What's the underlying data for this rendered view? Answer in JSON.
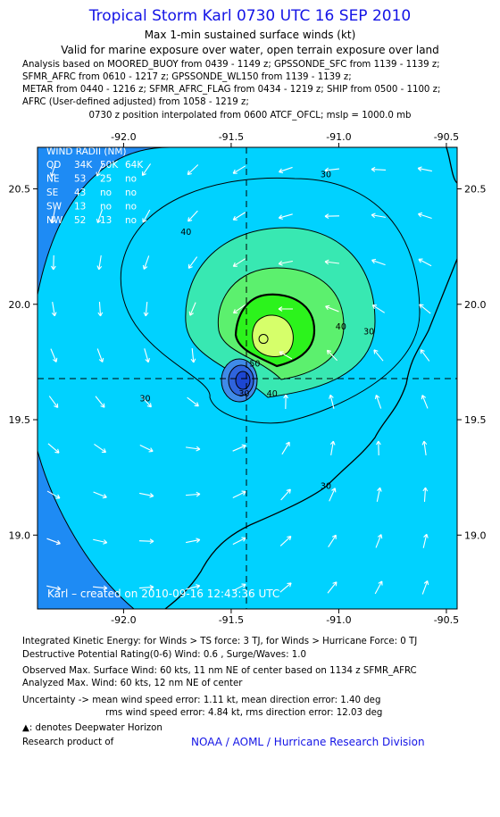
{
  "header": {
    "title": "Tropical Storm Karl 0730 UTC 16 SEP 2010",
    "subtitle1": "Max 1-min sustained surface winds (kt)",
    "subtitle2": "Valid for marine exposure over water, open terrain exposure over land",
    "analysis_lines": [
      "Analysis based on MOORED_BUOY from 0439 - 1149 z; GPSSONDE_SFC from 1139 - 1139 z;",
      "SFMR_AFRC from 0610 - 1217 z; GPSSONDE_WL150 from 1139 - 1139 z;",
      "METAR from 0440 - 1216 z; SFMR_AFRC_FLAG from 0434 - 1219 z; SHIP from 0500 - 1100 z;",
      "AFRC (User-defined adjusted) from 1058 - 1219 z;"
    ],
    "position_line": "0730 z position interpolated from 0600 ATCF_OFCL; mslp = 1000.0 mb"
  },
  "chart_data": {
    "type": "contour map",
    "x_ticks": [
      "-92.0",
      "-91.5",
      "-91.0",
      "-90.5"
    ],
    "y_ticks": [
      "20.5",
      "20.0",
      "19.5",
      "19.0"
    ],
    "xlim": [
      -92.4,
      -90.45
    ],
    "ylim": [
      18.68,
      20.68
    ],
    "center": {
      "lon": -91.45,
      "lat": 19.68
    },
    "max_wind_location": {
      "lon": -91.35,
      "lat": 19.85
    },
    "contour_labels": [
      {
        "text": "30",
        "lon": -91.06,
        "lat": 20.55
      },
      {
        "text": "40",
        "lon": -91.71,
        "lat": 20.3
      },
      {
        "text": "40",
        "lon": -90.99,
        "lat": 19.89
      },
      {
        "text": "40",
        "lon": -91.31,
        "lat": 19.6
      },
      {
        "text": "50",
        "lon": -91.39,
        "lat": 19.73
      },
      {
        "text": "30",
        "lon": -91.44,
        "lat": 19.6
      },
      {
        "text": "30",
        "lon": -91.9,
        "lat": 19.58
      },
      {
        "text": "30",
        "lon": -91.06,
        "lat": 19.2
      },
      {
        "text": "30",
        "lon": -90.86,
        "lat": 19.87
      }
    ],
    "wind_radii": {
      "title": "WIND RADII (NM)",
      "columns": [
        "QD",
        "34K",
        "50K",
        "64K"
      ],
      "rows": [
        [
          "NE",
          "53",
          "25",
          "no"
        ],
        [
          "SE",
          "43",
          "no",
          "no"
        ],
        [
          "SW",
          "13",
          "no",
          "no"
        ],
        [
          "NW",
          "52",
          "13",
          "no"
        ]
      ]
    },
    "credit": "Karl – created on 2010-09-16 12:43:36 UTC",
    "colors": {
      "background": "#1e8bf4",
      "level_30": "#00d2ff",
      "level_40": "#38e8b2",
      "level_45": "#5cf06e",
      "level_50": "#2cf31c",
      "level_55": "#d6ff6a",
      "eye": "#1c46d2"
    }
  },
  "footer": {
    "ike": "Integrated Kinetic Energy:  for Winds > TS force: 3 TJ,  for Winds > Hurricane Force: 0 TJ",
    "dpr": "Destructive Potential Rating(0-6)   Wind: 0.6 , Surge/Waves: 1.0",
    "observed": "Observed Max. Surface Wind: 60 kts, 11 nm NE of center based on 1134 z SFMR_AFRC",
    "analyzed": "Analyzed Max. Wind: 60 kts, 12 nm NE of center",
    "uncertainty1": "Uncertainty -> mean wind speed error: 1.11 kt,   mean direction error: 1.40 deg",
    "uncertainty2": "rms wind speed error: 4.84 kt,   rms direction error: 12.03 deg",
    "deepwater_note": ": denotes Deepwater Horizon",
    "research_label": "Research product of",
    "organization": "NOAA / AOML / Hurricane Research Division"
  }
}
